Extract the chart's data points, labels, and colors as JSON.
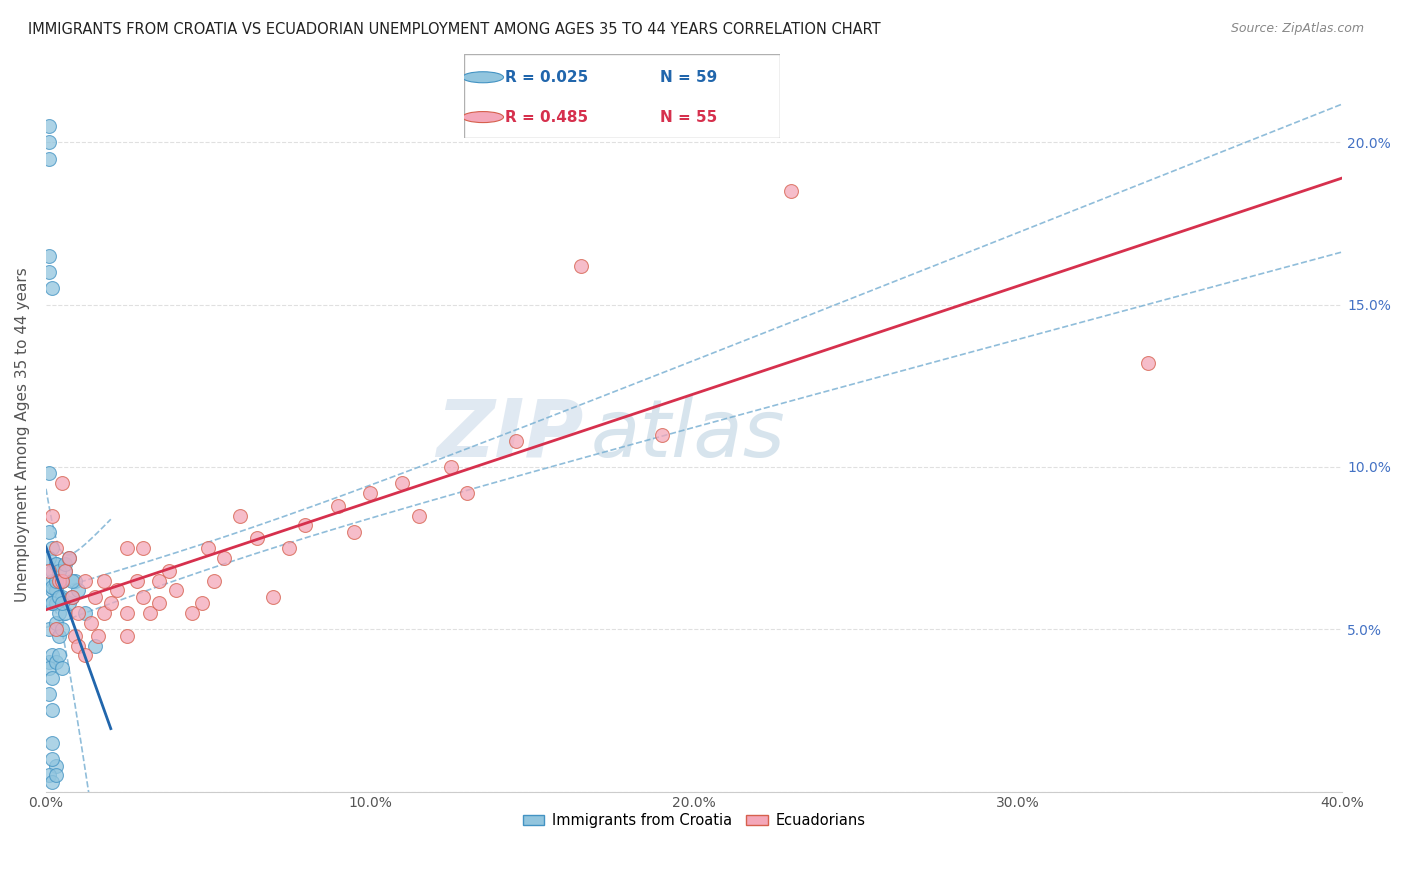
{
  "title": "IMMIGRANTS FROM CROATIA VS ECUADORIAN UNEMPLOYMENT AMONG AGES 35 TO 44 YEARS CORRELATION CHART",
  "source": "Source: ZipAtlas.com",
  "ylabel": "Unemployment Among Ages 35 to 44 years",
  "xlim": [
    0.0,
    0.4
  ],
  "ylim": [
    0.0,
    0.22
  ],
  "xticks": [
    0.0,
    0.05,
    0.1,
    0.15,
    0.2,
    0.25,
    0.3,
    0.35,
    0.4
  ],
  "xticklabels": [
    "0.0%",
    "",
    "10.0%",
    "",
    "20.0%",
    "",
    "30.0%",
    "",
    "40.0%"
  ],
  "yticks": [
    0.0,
    0.05,
    0.1,
    0.15,
    0.2
  ],
  "yticklabels_right": [
    "",
    "5.0%",
    "10.0%",
    "15.0%",
    "20.0%"
  ],
  "legend_label1": "Immigrants from Croatia",
  "legend_label2": "Ecuadorians",
  "blue_color": "#92c5de",
  "pink_color": "#f4a7b9",
  "blue_edge_color": "#4393c3",
  "pink_edge_color": "#d6604d",
  "blue_line_color": "#2166ac",
  "pink_line_color": "#d6304d",
  "conf_band_color": "#74add1",
  "watermark_color": "#d0dce8",
  "watermark_text": "ZIPatlas",
  "blue_x": [
    0.001,
    0.001,
    0.001,
    0.001,
    0.001,
    0.001,
    0.001,
    0.001,
    0.002,
    0.002,
    0.002,
    0.002,
    0.002,
    0.002,
    0.002,
    0.003,
    0.003,
    0.003,
    0.003,
    0.003,
    0.004,
    0.004,
    0.004,
    0.005,
    0.005,
    0.005,
    0.006,
    0.006,
    0.007,
    0.008,
    0.009,
    0.01,
    0.012,
    0.015,
    0.001,
    0.001,
    0.002,
    0.002,
    0.002,
    0.003,
    0.003,
    0.004,
    0.004,
    0.005,
    0.006,
    0.007,
    0.008,
    0.001,
    0.001,
    0.002,
    0.003,
    0.004,
    0.005,
    0.002,
    0.003,
    0.001,
    0.002,
    0.002,
    0.003
  ],
  "blue_y": [
    0.205,
    0.2,
    0.195,
    0.165,
    0.16,
    0.098,
    0.05,
    0.04,
    0.155,
    0.075,
    0.065,
    0.062,
    0.058,
    0.042,
    0.025,
    0.07,
    0.065,
    0.062,
    0.058,
    0.052,
    0.06,
    0.055,
    0.048,
    0.065,
    0.06,
    0.05,
    0.068,
    0.055,
    0.058,
    0.06,
    0.065,
    0.062,
    0.055,
    0.045,
    0.08,
    0.072,
    0.068,
    0.063,
    0.058,
    0.07,
    0.065,
    0.068,
    0.06,
    0.058,
    0.07,
    0.072,
    0.065,
    0.038,
    0.03,
    0.035,
    0.04,
    0.042,
    0.038,
    0.015,
    0.008,
    0.005,
    0.003,
    0.01,
    0.005
  ],
  "pink_x": [
    0.001,
    0.002,
    0.003,
    0.003,
    0.004,
    0.005,
    0.005,
    0.006,
    0.007,
    0.008,
    0.009,
    0.01,
    0.01,
    0.012,
    0.012,
    0.014,
    0.015,
    0.016,
    0.018,
    0.018,
    0.02,
    0.022,
    0.025,
    0.025,
    0.025,
    0.028,
    0.03,
    0.03,
    0.032,
    0.035,
    0.035,
    0.038,
    0.04,
    0.045,
    0.048,
    0.05,
    0.052,
    0.055,
    0.06,
    0.065,
    0.07,
    0.075,
    0.08,
    0.09,
    0.095,
    0.1,
    0.11,
    0.115,
    0.125,
    0.13,
    0.145,
    0.165,
    0.19,
    0.23,
    0.34
  ],
  "pink_y": [
    0.068,
    0.085,
    0.075,
    0.05,
    0.065,
    0.095,
    0.065,
    0.068,
    0.072,
    0.06,
    0.048,
    0.045,
    0.055,
    0.042,
    0.065,
    0.052,
    0.06,
    0.048,
    0.055,
    0.065,
    0.058,
    0.062,
    0.055,
    0.075,
    0.048,
    0.065,
    0.06,
    0.075,
    0.055,
    0.058,
    0.065,
    0.068,
    0.062,
    0.055,
    0.058,
    0.075,
    0.065,
    0.072,
    0.085,
    0.078,
    0.06,
    0.075,
    0.082,
    0.088,
    0.08,
    0.092,
    0.095,
    0.085,
    0.1,
    0.092,
    0.108,
    0.162,
    0.11,
    0.185,
    0.132
  ]
}
